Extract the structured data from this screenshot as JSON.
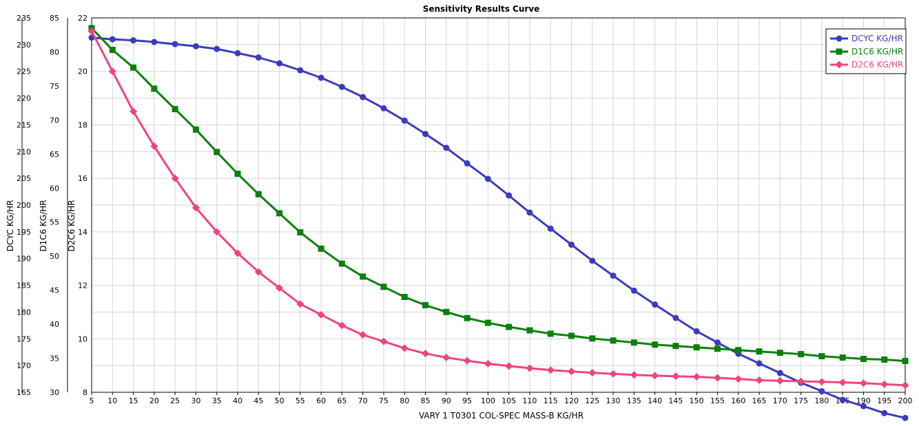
{
  "chart_data": {
    "type": "line",
    "title": "Sensitivity Results Curve",
    "xlabel": "VARY   1 T0301  COL-SPEC  MASS-B KG/HR",
    "xlim": [
      5,
      200
    ],
    "x": [
      5,
      10,
      15,
      20,
      25,
      30,
      35,
      40,
      45,
      50,
      55,
      60,
      65,
      70,
      75,
      80,
      85,
      90,
      95,
      100,
      105,
      110,
      115,
      120,
      125,
      130,
      135,
      140,
      145,
      150,
      155,
      160,
      165,
      170,
      175,
      180,
      185,
      190,
      195,
      200
    ],
    "grid": true,
    "legend_position": "top-right",
    "y_axes": [
      {
        "label": "DCYC KG/HR",
        "ylim": [
          165,
          235
        ],
        "ticks": [
          165,
          170,
          175,
          180,
          185,
          190,
          195,
          200,
          205,
          210,
          215,
          220,
          225,
          230,
          235
        ]
      },
      {
        "label": "D1C6 KG/HR",
        "ylim": [
          30,
          85
        ],
        "ticks": [
          30,
          35,
          40,
          45,
          50,
          55,
          60,
          65,
          70,
          75,
          80,
          85
        ]
      },
      {
        "label": "D2C6 KG/HR",
        "ylim": [
          8,
          22
        ],
        "ticks": [
          8,
          10,
          12,
          14,
          16,
          18,
          20,
          22
        ]
      }
    ],
    "series": [
      {
        "name": "DCYC KG/HR",
        "color": "#3b3bbd",
        "marker": "circle",
        "axis": 0,
        "values": [
          231.3,
          231.0,
          230.8,
          230.5,
          230.1,
          229.7,
          229.2,
          228.4,
          227.6,
          226.5,
          225.2,
          223.8,
          222.1,
          220.2,
          218.1,
          215.8,
          213.3,
          210.7,
          207.8,
          204.9,
          201.8,
          198.6,
          195.6,
          192.6,
          189.6,
          186.8,
          184.0,
          181.4,
          178.9,
          176.4,
          174.3,
          172.2,
          170.4,
          168.6,
          166.8,
          165.2,
          163.6,
          162.4,
          161.1,
          160.2
        ]
      },
      {
        "name": "D1C6 KG/HR",
        "color": "#0b800b",
        "marker": "square",
        "axis": 1,
        "values": [
          83.5,
          80.3,
          77.7,
          74.6,
          71.6,
          68.6,
          65.3,
          62.1,
          59.1,
          56.3,
          53.5,
          51.1,
          48.9,
          47.0,
          45.5,
          44.0,
          42.8,
          41.8,
          40.9,
          40.2,
          39.6,
          39.1,
          38.6,
          38.3,
          37.9,
          37.6,
          37.3,
          37.0,
          36.8,
          36.6,
          36.4,
          36.2,
          36.0,
          35.8,
          35.6,
          35.3,
          35.1,
          34.9,
          34.8,
          34.6
        ]
      },
      {
        "name": "D2C6 KG/HR",
        "color": "#f0447f",
        "marker": "diamond",
        "axis": 2,
        "values": [
          21.5,
          20.0,
          18.5,
          17.2,
          16.0,
          14.9,
          14.0,
          13.2,
          12.5,
          11.9,
          11.3,
          10.9,
          10.5,
          10.15,
          9.9,
          9.65,
          9.45,
          9.3,
          9.18,
          9.07,
          8.98,
          8.9,
          8.83,
          8.78,
          8.73,
          8.69,
          8.65,
          8.62,
          8.6,
          8.58,
          8.54,
          8.5,
          8.45,
          8.43,
          8.41,
          8.39,
          8.37,
          8.34,
          8.3,
          8.26
        ]
      }
    ]
  }
}
